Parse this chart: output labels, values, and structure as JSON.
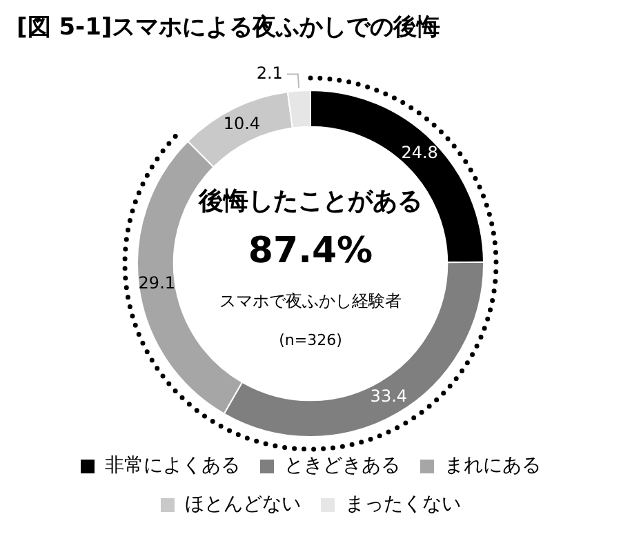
{
  "chart_data": {
    "type": "donut",
    "title": "[図 5-1]スマホによる夜ふかしでの後悔",
    "categories": [
      "非常によくある",
      "ときどきある",
      "まれにある",
      "ほとんどない",
      "まったくない"
    ],
    "values": [
      24.8,
      33.4,
      29.1,
      10.4,
      2.1
    ],
    "colors": [
      "#000000",
      "#7f7f7f",
      "#a6a6a6",
      "#c9c9c9",
      "#e6e6e6"
    ],
    "data_labels": true,
    "legend": "bottom",
    "annotations": [
      "後悔したことがある",
      "87.4%",
      "スマホで夜ふかし経験者",
      "(n=326)"
    ]
  }
}
